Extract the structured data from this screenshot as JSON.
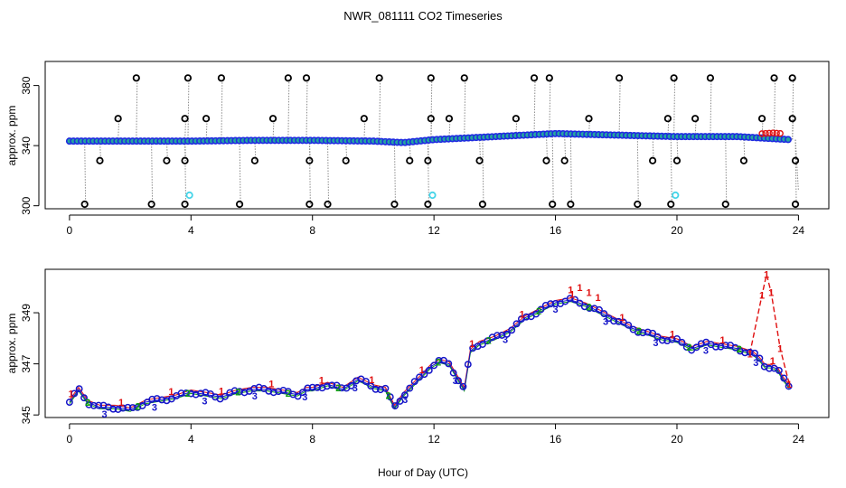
{
  "title": "NWR_081111  CO2 Timeseries",
  "xlabel": "Hour of Day (UTC)",
  "chart_data": [
    {
      "type": "scatter",
      "name": "top-panel",
      "ylabel": "approx. ppm",
      "xlim": [
        -0.8,
        25
      ],
      "ylim": [
        298,
        396
      ],
      "xticks": [
        0,
        4,
        8,
        12,
        16,
        20,
        24
      ],
      "yticks": [
        300,
        340,
        380
      ],
      "colors": {
        "trace": "#8a8a8a",
        "baseline": "#1f2be0",
        "baseline_fill": "#24a6a0",
        "spike": "#000000",
        "cal": "#45d4e8",
        "red": "#e01010"
      },
      "baseline": [
        {
          "x": 0.0,
          "y": 343
        },
        {
          "x": 2.0,
          "y": 343
        },
        {
          "x": 4.0,
          "y": 343
        },
        {
          "x": 6.0,
          "y": 343.5
        },
        {
          "x": 8.0,
          "y": 343.5
        },
        {
          "x": 10.0,
          "y": 343
        },
        {
          "x": 11.0,
          "y": 342
        },
        {
          "x": 12.0,
          "y": 344
        },
        {
          "x": 13.0,
          "y": 345
        },
        {
          "x": 14.0,
          "y": 346
        },
        {
          "x": 16.0,
          "y": 348
        },
        {
          "x": 18.0,
          "y": 347
        },
        {
          "x": 20.0,
          "y": 346
        },
        {
          "x": 22.0,
          "y": 346
        },
        {
          "x": 23.7,
          "y": 344
        }
      ],
      "spikes_high": [
        2.2,
        3.9,
        5.0,
        7.2,
        7.8,
        10.2,
        11.9,
        13.0,
        15.3,
        15.8,
        18.1,
        19.9,
        21.1,
        23.2,
        23.8
      ],
      "spikes_low": [
        0.5,
        2.7,
        3.8,
        5.6,
        7.9,
        8.5,
        10.7,
        11.8,
        13.6,
        15.9,
        16.5,
        18.7,
        19.8,
        21.6,
        23.9
      ],
      "spikes_mid_high": [
        1.6,
        3.8,
        4.5,
        6.7,
        9.7,
        11.9,
        12.5,
        14.7,
        17.1,
        19.7,
        20.6,
        22.8,
        23.8
      ],
      "spikes_mid_low": [
        1.0,
        3.2,
        3.8,
        6.1,
        7.9,
        9.1,
        11.2,
        11.8,
        13.5,
        15.7,
        16.3,
        19.2,
        20.0,
        22.2,
        23.9
      ],
      "cal_points": [
        {
          "x": 3.95,
          "y": 307
        },
        {
          "x": 11.95,
          "y": 307
        },
        {
          "x": 19.95,
          "y": 307
        }
      ],
      "red_bump": {
        "from": 22.8,
        "to": 23.5,
        "y": 348.5
      },
      "tail": {
        "x": 24.0,
        "y": 310
      }
    },
    {
      "type": "line",
      "name": "bottom-panel",
      "ylabel": "approx. ppm",
      "xlim": [
        -0.8,
        25
      ],
      "ylim": [
        344.9,
        350.7
      ],
      "xticks": [
        0,
        4,
        8,
        12,
        16,
        20,
        24
      ],
      "yticks": [
        345,
        347,
        349
      ],
      "colors": {
        "s1": "#e01010",
        "s2": "#10a010",
        "s3": "#1414c8",
        "circle": "#1414c8"
      },
      "series_digits": [
        "1",
        "2",
        "3"
      ],
      "x": [
        0.0,
        0.3,
        0.6,
        1.0,
        1.5,
        2.0,
        2.5,
        3.0,
        3.5,
        4.0,
        4.5,
        5.0,
        5.5,
        6.0,
        6.5,
        7.0,
        7.5,
        7.8,
        8.0,
        8.5,
        9.0,
        9.5,
        10.0,
        10.4,
        10.7,
        11.0,
        11.5,
        11.9,
        12.2,
        12.5,
        12.8,
        13.0,
        13.2,
        13.5,
        14.0,
        14.5,
        15.0,
        15.5,
        16.0,
        16.5,
        17.0,
        17.5,
        18.0,
        18.5,
        19.0,
        19.5,
        20.0,
        20.5,
        21.0,
        21.5,
        22.0,
        22.5,
        22.7,
        22.9,
        23.1,
        23.3,
        23.5,
        23.7
      ],
      "values": [
        345.5,
        346.0,
        345.5,
        345.3,
        345.3,
        345.2,
        345.5,
        345.6,
        345.7,
        345.9,
        345.8,
        345.7,
        345.9,
        346.0,
        346.0,
        345.9,
        345.8,
        346.0,
        346.0,
        346.2,
        346.0,
        346.4,
        346.1,
        346.0,
        345.3,
        345.8,
        346.4,
        346.9,
        347.1,
        347.0,
        346.4,
        346.0,
        347.5,
        347.8,
        348.0,
        348.3,
        348.8,
        349.1,
        349.4,
        349.5,
        349.3,
        349.0,
        348.7,
        348.4,
        348.2,
        348.0,
        347.9,
        347.6,
        347.8,
        347.7,
        347.6,
        347.4,
        347.2,
        346.9,
        346.9,
        346.8,
        346.4,
        346.1
      ],
      "red_spike": [
        {
          "x": 22.4,
          "y": 347.4
        },
        {
          "x": 22.8,
          "y": 349.7
        },
        {
          "x": 22.95,
          "y": 350.5
        },
        {
          "x": 23.1,
          "y": 349.8
        },
        {
          "x": 23.4,
          "y": 347.6
        },
        {
          "x": 23.7,
          "y": 346.2
        }
      ],
      "red_pre_peak": [
        {
          "x": 16.5,
          "y": 349.9
        },
        {
          "x": 16.8,
          "y": 350.0
        },
        {
          "x": 17.1,
          "y": 349.8
        },
        {
          "x": 17.4,
          "y": 349.6
        }
      ]
    }
  ]
}
